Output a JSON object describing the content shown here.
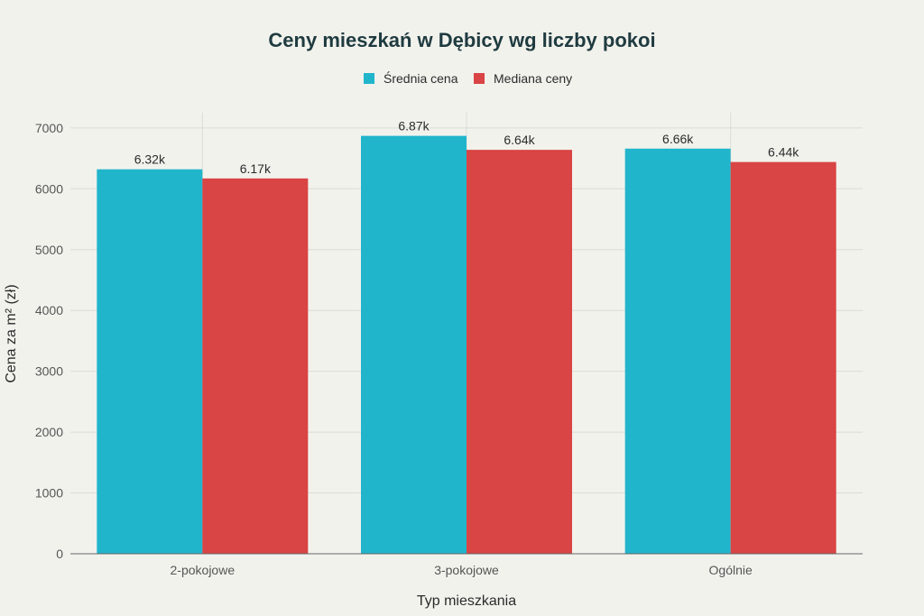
{
  "chart_data": {
    "type": "bar",
    "title": "Ceny mieszkań w Dębicy wg liczby pokoi",
    "xlabel": "Typ mieszkania",
    "ylabel": "Cena za m² (zł)",
    "categories": [
      "2-pokojowe",
      "3-pokojowe",
      "Ogólnie"
    ],
    "series": [
      {
        "name": "Średnia cena",
        "values": [
          6320,
          6870,
          6660
        ],
        "labels": [
          "6.32k",
          "6.87k",
          "6.66k"
        ],
        "color": "#21b5cc"
      },
      {
        "name": "Mediana ceny",
        "values": [
          6170,
          6640,
          6440
        ],
        "labels": [
          "6.17k",
          "6.64k",
          "6.44k"
        ],
        "color": "#d94444"
      }
    ],
    "ylim": [
      0,
      7250
    ],
    "yticks": [
      0,
      1000,
      2000,
      3000,
      4000,
      5000,
      6000,
      7000
    ],
    "grid": true,
    "legend_position": "top-center"
  }
}
